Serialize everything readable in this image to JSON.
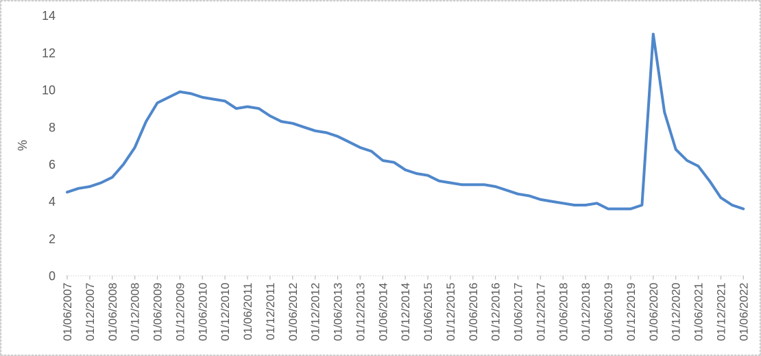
{
  "chart_data": {
    "type": "line",
    "title": "",
    "xlabel": "",
    "ylabel": "%",
    "ylim": [
      0,
      14
    ],
    "y_ticks": [
      0,
      2,
      4,
      6,
      8,
      10,
      12,
      14
    ],
    "grid": false,
    "legend": "none",
    "x_tick_every": 2,
    "x": [
      "01/06/2007",
      "01/09/2007",
      "01/12/2007",
      "01/03/2008",
      "01/06/2008",
      "01/09/2008",
      "01/12/2008",
      "01/03/2009",
      "01/06/2009",
      "01/09/2009",
      "01/12/2009",
      "01/03/2010",
      "01/06/2010",
      "01/09/2010",
      "01/12/2010",
      "01/03/2011",
      "01/06/2011",
      "01/09/2011",
      "01/12/2011",
      "01/03/2012",
      "01/06/2012",
      "01/09/2012",
      "01/12/2012",
      "01/03/2013",
      "01/06/2013",
      "01/09/2013",
      "01/12/2013",
      "01/03/2014",
      "01/06/2014",
      "01/09/2014",
      "01/12/2014",
      "01/03/2015",
      "01/06/2015",
      "01/09/2015",
      "01/12/2015",
      "01/03/2016",
      "01/06/2016",
      "01/09/2016",
      "01/12/2016",
      "01/03/2017",
      "01/06/2017",
      "01/09/2017",
      "01/12/2017",
      "01/03/2018",
      "01/06/2018",
      "01/09/2018",
      "01/12/2018",
      "01/03/2019",
      "01/06/2019",
      "01/09/2019",
      "01/12/2019",
      "01/03/2020",
      "01/06/2020",
      "01/09/2020",
      "01/12/2020",
      "01/03/2021",
      "01/06/2021",
      "01/09/2021",
      "01/12/2021",
      "01/03/2022",
      "01/06/2022"
    ],
    "values": [
      4.5,
      4.7,
      4.8,
      5.0,
      5.3,
      6.0,
      6.9,
      8.3,
      9.3,
      9.6,
      9.9,
      9.8,
      9.6,
      9.5,
      9.4,
      9.0,
      9.1,
      9.0,
      8.6,
      8.3,
      8.2,
      8.0,
      7.8,
      7.7,
      7.5,
      7.2,
      6.9,
      6.7,
      6.2,
      6.1,
      5.7,
      5.5,
      5.4,
      5.1,
      5.0,
      4.9,
      4.9,
      4.9,
      4.8,
      4.6,
      4.4,
      4.3,
      4.1,
      4.0,
      3.9,
      3.8,
      3.8,
      3.9,
      3.6,
      3.6,
      3.6,
      3.8,
      13.0,
      8.8,
      6.8,
      6.2,
      5.9,
      5.1,
      4.2,
      3.8,
      3.6
    ],
    "colors": {
      "series": "#4f87cb",
      "axis_line": "#d9d9d9",
      "tick": "#bfbfbf",
      "label": "#595959"
    }
  }
}
